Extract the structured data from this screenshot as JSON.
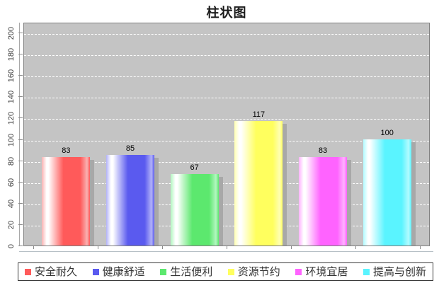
{
  "title": "柱状图",
  "chart_data": {
    "type": "bar",
    "title": "柱状图",
    "categories": [
      "安全耐久",
      "健康舒适",
      "生活便利",
      "资源节约",
      "环境宜居",
      "提高与创新"
    ],
    "values": [
      83,
      85,
      67,
      117,
      83,
      100
    ],
    "series_colors": [
      "#ff5a5a",
      "#5a5aef",
      "#5ce86e",
      "#ffff5e",
      "#ff63ff",
      "#5af4ff"
    ],
    "series_light_colors": [
      "#f9b2b2",
      "#b2b2f9",
      "#b2f6c0",
      "#ffffb2",
      "#ffb2ff",
      "#b2fbff"
    ],
    "xlabel": "",
    "ylabel": "",
    "ylim": [
      0,
      210
    ],
    "yticks": [
      0,
      20,
      40,
      60,
      80,
      100,
      120,
      140,
      160,
      180,
      200
    ],
    "grid": true,
    "gridline_color": "#ffffff",
    "plot_background": "#c4c4c4",
    "shadow_color": "#a8a8a8",
    "value_label_color": "#000000",
    "legend_position": "bottom"
  }
}
